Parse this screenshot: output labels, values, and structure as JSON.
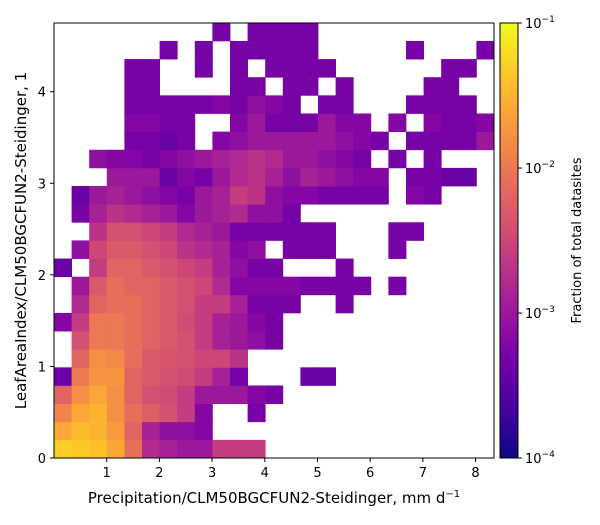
{
  "chart_data": {
    "type": "heatmap",
    "title": "",
    "xlabel": "Precipitation/CLM50BGCFUN2-Steidinger,  mm d",
    "xlabel_sup": "−1",
    "ylabel": "LeafAreaIndex/CLM50BGCFUN2-Steidinger,  1",
    "xlim": [
      0.0,
      8.35
    ],
    "ylim": [
      0.0,
      4.75
    ],
    "xticks": [
      1,
      2,
      3,
      4,
      5,
      6,
      7,
      8
    ],
    "xtick_labels": [
      "1",
      "2",
      "3",
      "4",
      "5",
      "6",
      "7",
      "8"
    ],
    "yticks": [
      0,
      1,
      2,
      3,
      4
    ],
    "ytick_labels": [
      "0",
      "1",
      "2",
      "3",
      "4"
    ],
    "grid": false,
    "x_bins": 25,
    "y_bins": 24,
    "bin_width_x": 0.334,
    "bin_height_y": 0.198,
    "colormap": "plasma",
    "colorbar": {
      "label": "Fraction of total datasites",
      "scale": "log",
      "range": [
        0.0001,
        0.1
      ],
      "ticks": [
        {
          "value": 0.0001,
          "base": "10",
          "exp": "−4"
        },
        {
          "value": 0.001,
          "base": "10",
          "exp": "−3"
        },
        {
          "value": 0.01,
          "base": "10",
          "exp": "−2"
        },
        {
          "value": 0.1,
          "base": "10",
          "exp": "−1"
        }
      ]
    },
    "row_order": "bottom-to-top (row 0 = lowest LAI bin); each row lists [column index from x=0, log10 fraction]",
    "log10_fraction_rows": [
      [
        [
          0,
          -1.3
        ],
        [
          1,
          -1.35
        ],
        [
          2,
          -1.4
        ],
        [
          3,
          -1.6
        ],
        [
          4,
          -2.1
        ],
        [
          5,
          -2.8
        ],
        [
          6,
          -2.9
        ],
        [
          7,
          -3.0
        ],
        [
          8,
          -3.0
        ],
        [
          9,
          -2.6
        ],
        [
          10,
          -2.6
        ],
        [
          11,
          -2.6
        ]
      ],
      [
        [
          0,
          -1.6
        ],
        [
          1,
          -1.45
        ],
        [
          2,
          -1.5
        ],
        [
          3,
          -1.7
        ],
        [
          4,
          -2.2
        ],
        [
          5,
          -2.9
        ],
        [
          6,
          -3.1
        ],
        [
          7,
          -3.1
        ],
        [
          8,
          -3.2
        ]
      ],
      [
        [
          0,
          -1.9
        ],
        [
          1,
          -1.6
        ],
        [
          2,
          -1.5
        ],
        [
          3,
          -1.8
        ],
        [
          4,
          -2.1
        ],
        [
          5,
          -2.25
        ],
        [
          6,
          -2.4
        ],
        [
          7,
          -2.6
        ],
        [
          8,
          -3.2
        ],
        [
          11,
          -3.3
        ]
      ],
      [
        [
          0,
          -2.2
        ],
        [
          1,
          -1.8
        ],
        [
          2,
          -1.6
        ],
        [
          3,
          -1.8
        ],
        [
          4,
          -2.2
        ],
        [
          5,
          -2.4
        ],
        [
          6,
          -2.45
        ],
        [
          7,
          -2.6
        ],
        [
          8,
          -3.0
        ],
        [
          9,
          -3.0
        ],
        [
          10,
          -3.0
        ],
        [
          11,
          -3.2
        ],
        [
          12,
          -3.3
        ]
      ],
      [
        [
          0,
          -3.4
        ],
        [
          1,
          -2.0
        ],
        [
          2,
          -1.75
        ],
        [
          3,
          -1.75
        ],
        [
          4,
          -2.2
        ],
        [
          5,
          -2.3
        ],
        [
          6,
          -2.4
        ],
        [
          7,
          -2.45
        ],
        [
          8,
          -2.6
        ],
        [
          9,
          -2.9
        ],
        [
          10,
          -3.3
        ],
        [
          14,
          -3.4
        ],
        [
          15,
          -3.4
        ]
      ],
      [
        [
          1,
          -2.2
        ],
        [
          2,
          -1.8
        ],
        [
          3,
          -1.85
        ],
        [
          4,
          -2.1
        ],
        [
          5,
          -2.3
        ],
        [
          6,
          -2.35
        ],
        [
          7,
          -2.4
        ],
        [
          8,
          -2.5
        ],
        [
          9,
          -2.5
        ],
        [
          10,
          -2.7
        ]
      ],
      [
        [
          1,
          -2.4
        ],
        [
          2,
          -2.0
        ],
        [
          3,
          -2.0
        ],
        [
          4,
          -2.1
        ],
        [
          5,
          -2.2
        ],
        [
          6,
          -2.3
        ],
        [
          7,
          -2.4
        ],
        [
          8,
          -2.6
        ],
        [
          9,
          -2.9
        ],
        [
          10,
          -3.0
        ],
        [
          11,
          -3.1
        ],
        [
          12,
          -3.3
        ]
      ],
      [
        [
          0,
          -3.2
        ],
        [
          1,
          -2.6
        ],
        [
          2,
          -2.0
        ],
        [
          3,
          -2.0
        ],
        [
          4,
          -2.1
        ],
        [
          5,
          -2.2
        ],
        [
          6,
          -2.3
        ],
        [
          7,
          -2.45
        ],
        [
          8,
          -2.6
        ],
        [
          9,
          -2.9
        ],
        [
          10,
          -3.0
        ],
        [
          11,
          -3.2
        ],
        [
          12,
          -3.3
        ]
      ],
      [
        [
          1,
          -2.8
        ],
        [
          2,
          -2.2
        ],
        [
          3,
          -2.1
        ],
        [
          4,
          -2.1
        ],
        [
          5,
          -2.2
        ],
        [
          6,
          -2.3
        ],
        [
          7,
          -2.4
        ],
        [
          8,
          -2.6
        ],
        [
          9,
          -2.6
        ],
        [
          10,
          -2.9
        ],
        [
          11,
          -3.3
        ],
        [
          12,
          -3.3
        ],
        [
          13,
          -3.3
        ],
        [
          16,
          -3.3
        ]
      ],
      [
        [
          1,
          -3.0
        ],
        [
          2,
          -2.3
        ],
        [
          3,
          -2.1
        ],
        [
          4,
          -2.2
        ],
        [
          5,
          -2.2
        ],
        [
          6,
          -2.3
        ],
        [
          7,
          -2.4
        ],
        [
          8,
          -2.5
        ],
        [
          9,
          -2.8
        ],
        [
          10,
          -3.2
        ],
        [
          11,
          -3.2
        ],
        [
          12,
          -3.2
        ],
        [
          13,
          -3.2
        ],
        [
          14,
          -3.3
        ],
        [
          15,
          -3.3
        ],
        [
          16,
          -3.3
        ],
        [
          17,
          -3.3
        ],
        [
          19,
          -3.3
        ]
      ],
      [
        [
          0,
          -3.4
        ],
        [
          2,
          -2.6
        ],
        [
          3,
          -2.2
        ],
        [
          4,
          -2.2
        ],
        [
          5,
          -2.3
        ],
        [
          6,
          -2.4
        ],
        [
          7,
          -2.5
        ],
        [
          8,
          -2.6
        ],
        [
          9,
          -2.9
        ],
        [
          10,
          -3.1
        ],
        [
          11,
          -3.3
        ],
        [
          12,
          -3.3
        ],
        [
          16,
          -3.3
        ]
      ],
      [
        [
          1,
          -3.1
        ],
        [
          2,
          -2.5
        ],
        [
          3,
          -2.3
        ],
        [
          4,
          -2.3
        ],
        [
          5,
          -2.4
        ],
        [
          6,
          -2.5
        ],
        [
          7,
          -2.7
        ],
        [
          8,
          -2.8
        ],
        [
          9,
          -2.9
        ],
        [
          10,
          -3.2
        ],
        [
          11,
          -3.1
        ],
        [
          13,
          -3.3
        ],
        [
          14,
          -3.3
        ],
        [
          15,
          -3.3
        ],
        [
          19,
          -3.3
        ]
      ],
      [
        [
          2,
          -2.7
        ],
        [
          3,
          -2.4
        ],
        [
          4,
          -2.4
        ],
        [
          5,
          -2.5
        ],
        [
          6,
          -2.6
        ],
        [
          7,
          -2.8
        ],
        [
          8,
          -2.9
        ],
        [
          9,
          -3.0
        ],
        [
          10,
          -3.3
        ],
        [
          11,
          -3.3
        ],
        [
          12,
          -3.3
        ],
        [
          13,
          -3.3
        ],
        [
          14,
          -3.3
        ],
        [
          15,
          -3.3
        ],
        [
          19,
          -3.3
        ],
        [
          20,
          -3.3
        ]
      ],
      [
        [
          1,
          -3.3
        ],
        [
          2,
          -2.9
        ],
        [
          3,
          -2.7
        ],
        [
          4,
          -2.8
        ],
        [
          5,
          -2.9
        ],
        [
          6,
          -3.0
        ],
        [
          7,
          -3.2
        ],
        [
          8,
          -3.0
        ],
        [
          9,
          -2.9
        ],
        [
          10,
          -2.8
        ],
        [
          11,
          -3.1
        ],
        [
          12,
          -3.1
        ],
        [
          13,
          -3.3
        ]
      ],
      [
        [
          1,
          -3.4
        ],
        [
          2,
          -3.0
        ],
        [
          3,
          -2.9
        ],
        [
          4,
          -3.0
        ],
        [
          5,
          -3.1
        ],
        [
          6,
          -3.2
        ],
        [
          7,
          -3.3
        ],
        [
          8,
          -3.0
        ],
        [
          9,
          -2.9
        ],
        [
          10,
          -2.6
        ],
        [
          11,
          -2.7
        ],
        [
          12,
          -3.1
        ],
        [
          13,
          -3.2
        ],
        [
          14,
          -3.2
        ],
        [
          15,
          -3.3
        ],
        [
          16,
          -3.3
        ],
        [
          17,
          -3.3
        ],
        [
          18,
          -3.3
        ],
        [
          20,
          -3.2
        ],
        [
          21,
          -3.3
        ]
      ],
      [
        [
          3,
          -3.0
        ],
        [
          4,
          -3.0
        ],
        [
          5,
          -3.0
        ],
        [
          6,
          -3.4
        ],
        [
          7,
          -3.2
        ],
        [
          8,
          -3.3
        ],
        [
          9,
          -3.0
        ],
        [
          10,
          -2.8
        ],
        [
          11,
          -2.7
        ],
        [
          12,
          -2.9
        ],
        [
          13,
          -3.1
        ],
        [
          14,
          -2.9
        ],
        [
          15,
          -3.0
        ],
        [
          16,
          -3.1
        ],
        [
          17,
          -3.2
        ],
        [
          18,
          -3.2
        ],
        [
          20,
          -3.3
        ],
        [
          21,
          -3.3
        ],
        [
          22,
          -3.4
        ],
        [
          23,
          -3.4
        ]
      ],
      [
        [
          2,
          -3.1
        ],
        [
          3,
          -3.2
        ],
        [
          4,
          -3.2
        ],
        [
          5,
          -3.3
        ],
        [
          6,
          -3.2
        ],
        [
          7,
          -3.1
        ],
        [
          8,
          -3.0
        ],
        [
          9,
          -2.9
        ],
        [
          10,
          -2.8
        ],
        [
          11,
          -2.7
        ],
        [
          12,
          -2.8
        ],
        [
          13,
          -3.0
        ],
        [
          14,
          -3.0
        ],
        [
          15,
          -3.1
        ],
        [
          16,
          -3.2
        ],
        [
          17,
          -3.3
        ],
        [
          19,
          -3.3
        ],
        [
          21,
          -3.3
        ]
      ],
      [
        [
          4,
          -3.3
        ],
        [
          5,
          -3.3
        ],
        [
          6,
          -3.4
        ],
        [
          7,
          -3.3
        ],
        [
          9,
          -3.2
        ],
        [
          10,
          -3.1
        ],
        [
          11,
          -3.0
        ],
        [
          12,
          -3.0
        ],
        [
          13,
          -3.0
        ],
        [
          14,
          -3.0
        ],
        [
          15,
          -3.0
        ],
        [
          16,
          -3.1
        ],
        [
          17,
          -3.2
        ],
        [
          18,
          -3.3
        ],
        [
          20,
          -3.3
        ],
        [
          21,
          -3.3
        ],
        [
          22,
          -3.3
        ],
        [
          23,
          -3.3
        ],
        [
          24,
          -3.0
        ]
      ],
      [
        [
          4,
          -3.2
        ],
        [
          5,
          -3.2
        ],
        [
          6,
          -3.3
        ],
        [
          7,
          -3.3
        ],
        [
          10,
          -3.2
        ],
        [
          11,
          -3.0
        ],
        [
          12,
          -3.3
        ],
        [
          13,
          -3.3
        ],
        [
          14,
          -3.3
        ],
        [
          15,
          -3.0
        ],
        [
          16,
          -3.2
        ],
        [
          17,
          -3.2
        ],
        [
          19,
          -3.2
        ],
        [
          21,
          -3.2
        ],
        [
          22,
          -3.3
        ],
        [
          23,
          -3.3
        ],
        [
          24,
          -3.2
        ]
      ],
      [
        [
          4,
          -3.3
        ],
        [
          5,
          -3.3
        ],
        [
          6,
          -3.3
        ],
        [
          7,
          -3.3
        ],
        [
          8,
          -3.3
        ],
        [
          9,
          -3.2
        ],
        [
          10,
          -3.3
        ],
        [
          11,
          -3.1
        ],
        [
          12,
          -3.2
        ],
        [
          13,
          -3.3
        ],
        [
          15,
          -3.3
        ],
        [
          16,
          -3.3
        ],
        [
          20,
          -3.3
        ],
        [
          21,
          -3.3
        ],
        [
          22,
          -3.3
        ],
        [
          23,
          -3.3
        ]
      ],
      [
        [
          4,
          -3.3
        ],
        [
          5,
          -3.3
        ],
        [
          10,
          -3.3
        ],
        [
          11,
          -3.3
        ],
        [
          13,
          -3.3
        ],
        [
          14,
          -3.3
        ],
        [
          16,
          -3.3
        ],
        [
          21,
          -3.3
        ],
        [
          22,
          -3.3
        ]
      ],
      [
        [
          4,
          -3.3
        ],
        [
          5,
          -3.3
        ],
        [
          8,
          -3.3
        ],
        [
          10,
          -3.3
        ],
        [
          12,
          -3.3
        ],
        [
          13,
          -3.3
        ],
        [
          14,
          -3.3
        ],
        [
          15,
          -3.3
        ],
        [
          22,
          -3.3
        ],
        [
          23,
          -3.3
        ]
      ],
      [
        [
          6,
          -3.3
        ],
        [
          8,
          -3.3
        ],
        [
          10,
          -3.3
        ],
        [
          11,
          -3.3
        ],
        [
          12,
          -3.3
        ],
        [
          13,
          -3.3
        ],
        [
          14,
          -3.3
        ],
        [
          20,
          -3.3
        ],
        [
          24,
          -3.3
        ]
      ],
      [
        [
          9,
          -3.3
        ],
        [
          11,
          -3.3
        ],
        [
          12,
          -3.3
        ],
        [
          13,
          -3.3
        ],
        [
          14,
          -3.3
        ]
      ]
    ]
  }
}
